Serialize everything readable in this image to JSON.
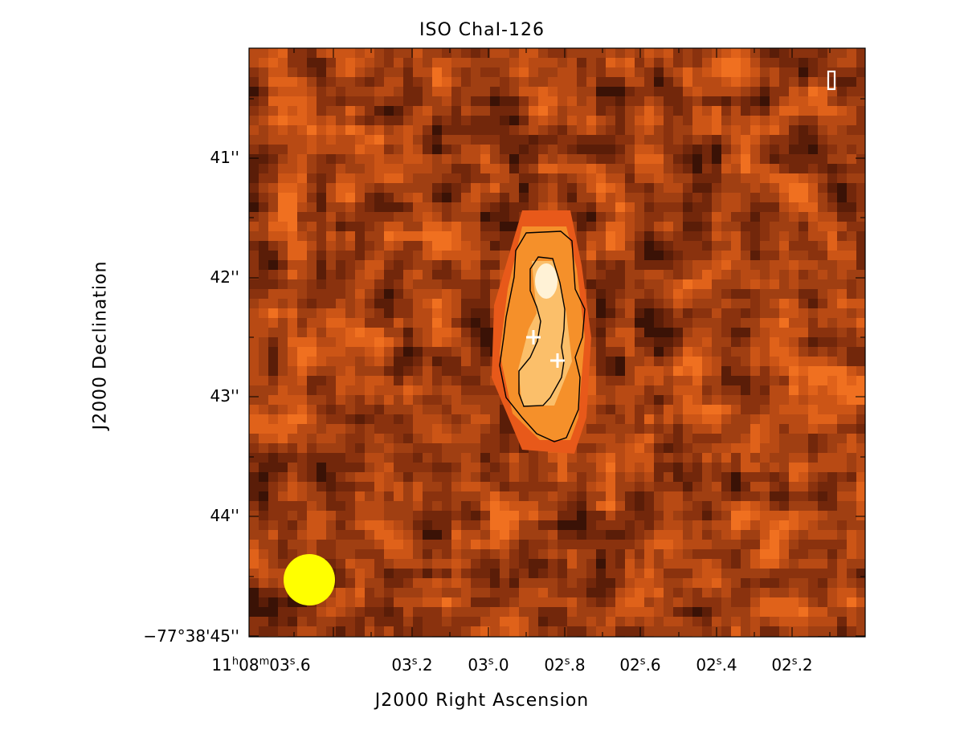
{
  "title": "ISO ChaI-126",
  "x_axis": {
    "label": "J2000 Right Ascension",
    "ticks": [
      {
        "h": "11",
        "hs": "h",
        "m": "08",
        "ms": "m",
        "s": "03",
        "ss": "s",
        "f": ".6"
      },
      {
        "s": "03",
        "ss": "s",
        "f": ".2"
      },
      {
        "s": "03",
        "ss": "s",
        "f": ".0"
      },
      {
        "s": "02",
        "ss": "s",
        "f": ".8"
      },
      {
        "s": "02",
        "ss": "s",
        "f": ".6"
      },
      {
        "s": "02",
        "ss": "s",
        "f": ".4"
      },
      {
        "s": "02",
        "ss": "s",
        "f": ".2"
      }
    ]
  },
  "y_axis": {
    "label": "J2000 Declination",
    "ticks": [
      "41''",
      "42''",
      "43''",
      "44''",
      "−77°38'45''"
    ]
  },
  "image": {
    "colormap": "hot",
    "contour_color": "#000000",
    "source_marks": "white-plus-icon",
    "beam_color": "#ffff00",
    "polarization_indicator": "I"
  }
}
